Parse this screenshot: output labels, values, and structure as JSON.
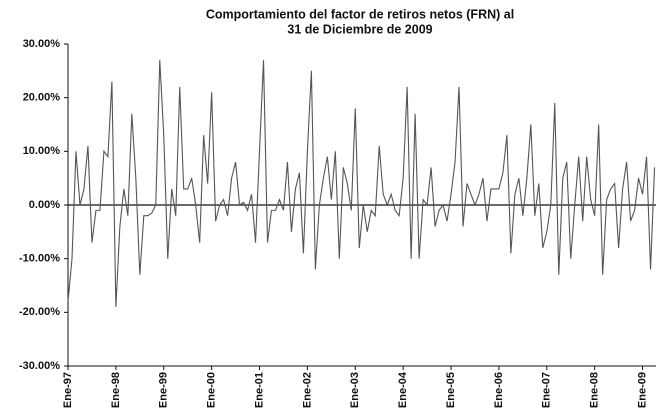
{
  "chart_data": {
    "type": "line",
    "title": [
      "Comportamiento del factor de retiros netos (FRN) al",
      "31 de Diciembre de 2009"
    ],
    "categories": [
      "Ene-97",
      null,
      null,
      null,
      null,
      null,
      null,
      null,
      null,
      null,
      null,
      null,
      "Ene-98",
      null,
      null,
      null,
      null,
      null,
      null,
      null,
      null,
      null,
      null,
      null,
      "Ene-99",
      null,
      null,
      null,
      null,
      null,
      null,
      null,
      null,
      null,
      null,
      null,
      "Ene-00",
      null,
      null,
      null,
      null,
      null,
      null,
      null,
      null,
      null,
      null,
      null,
      "Ene-01",
      null,
      null,
      null,
      null,
      null,
      null,
      null,
      null,
      null,
      null,
      null,
      "Ene-02",
      null,
      null,
      null,
      null,
      null,
      null,
      null,
      null,
      null,
      null,
      null,
      "Ene-03",
      null,
      null,
      null,
      null,
      null,
      null,
      null,
      null,
      null,
      null,
      null,
      "Ene-04",
      null,
      null,
      null,
      null,
      null,
      null,
      null,
      null,
      null,
      null,
      null,
      "Ene-05",
      null,
      null,
      null,
      null,
      null,
      null,
      null,
      null,
      null,
      null,
      null,
      "Ene-06",
      null,
      null,
      null,
      null,
      null,
      null,
      null,
      null,
      null,
      null,
      null,
      "Ene-07",
      null,
      null,
      null,
      null,
      null,
      null,
      null,
      null,
      null,
      null,
      null,
      "Ene-08",
      null,
      null,
      null,
      null,
      null,
      null,
      null,
      null,
      null,
      null,
      null,
      "Ene-09",
      null,
      null,
      null
    ],
    "values": [
      -18,
      -10,
      10,
      0,
      3,
      11,
      -7,
      -1,
      -1,
      10,
      9,
      23,
      -19,
      -4,
      3,
      -2,
      17,
      5,
      -13,
      -2,
      -2,
      -1.5,
      0,
      27,
      13,
      -10,
      3,
      -2,
      22,
      3,
      3,
      5,
      0,
      -7,
      13,
      4,
      21,
      -3,
      0,
      1,
      -2,
      5,
      8,
      0,
      0.5,
      -1,
      2,
      -7,
      10,
      27,
      -7,
      -1,
      -1,
      1,
      -1,
      8,
      -5,
      3,
      6,
      -9,
      10,
      25,
      -12,
      0,
      5,
      9,
      1,
      10,
      -10,
      7,
      4,
      -1,
      18,
      -8,
      0,
      -5,
      -1,
      -2,
      11,
      2,
      0,
      2,
      -1,
      -2,
      5,
      22,
      -10,
      17,
      -10,
      1,
      0,
      7,
      -4,
      -1,
      0,
      -3,
      2,
      8,
      22,
      -4,
      4,
      2,
      0,
      2,
      5,
      -3,
      3,
      3,
      3,
      6,
      13,
      -9,
      2,
      5,
      -2,
      5,
      15,
      -2,
      4,
      -8,
      -5,
      0,
      19,
      -13,
      5,
      8,
      -10,
      0,
      9,
      -3,
      9,
      1,
      -2,
      15,
      -13,
      1,
      3,
      4,
      -8,
      3,
      8,
      -3,
      -1,
      5,
      2,
      9,
      -12,
      7
    ],
    "color": "#555555",
    "ylim": [
      -30,
      30
    ],
    "yticks": [
      {
        "value": -30,
        "label": "-30.00%"
      },
      {
        "value": -20,
        "label": "-20.00%"
      },
      {
        "value": -10,
        "label": "-10.00%"
      },
      {
        "value": 0,
        "label": "0.00%"
      },
      {
        "value": 10,
        "label": "10.00%"
      },
      {
        "value": 20,
        "label": "20.00%"
      },
      {
        "value": 30,
        "label": "30.00%"
      }
    ],
    "grid": false
  }
}
